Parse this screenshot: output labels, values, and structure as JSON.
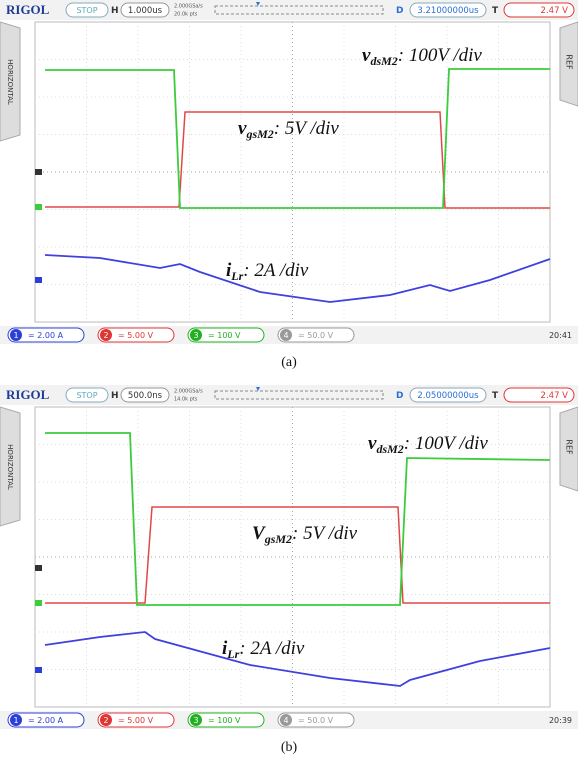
{
  "panels": [
    {
      "brand": "RIGOL",
      "status": "STOP",
      "h_label": "H",
      "timebase": "1.000us",
      "sample_rate": "2.000GSa/s",
      "points": "20.0k pts",
      "d_label": "D",
      "delay": "3.21000000us",
      "t_label": "T",
      "trigger_level": "2.47 V",
      "side_left": "HORIZONTAL",
      "side_right": "REF",
      "labels": [
        {
          "main": "v",
          "sub": "dsM2",
          "rest": ": 100V /div"
        },
        {
          "main": "v",
          "sub": "gsM2",
          "rest": ": 5V /div"
        },
        {
          "main": "i",
          "sub": "Lr",
          "rest": ": 2A /div"
        }
      ],
      "channels": [
        {
          "number": "1",
          "scale": "= 2.00 A"
        },
        {
          "number": "2",
          "scale": "= 5.00 V"
        },
        {
          "number": "3",
          "scale": "= 100 V"
        },
        {
          "number": "4",
          "scale": "= 50.0 V"
        }
      ],
      "clock": "20:41",
      "caption": "(a)"
    },
    {
      "brand": "RIGOL",
      "status": "STOP",
      "h_label": "H",
      "timebase": "500.0ns",
      "sample_rate": "2.000GSa/s",
      "points": "14.0k pts",
      "d_label": "D",
      "delay": "2.05000000us",
      "t_label": "T",
      "trigger_level": "2.47 V",
      "side_left": "HORIZONTAL",
      "side_right": "REF",
      "labels": [
        {
          "main": "v",
          "sub": "dsM2",
          "rest": ": 100V /div"
        },
        {
          "main": "V",
          "sub": "gsM2",
          "rest": ": 5V /div"
        },
        {
          "main": "i",
          "sub": "Lr",
          "rest": ": 2A /div"
        }
      ],
      "channels": [
        {
          "number": "1",
          "scale": "= 2.00 A"
        },
        {
          "number": "2",
          "scale": "= 5.00 V"
        },
        {
          "number": "3",
          "scale": "= 100 V"
        },
        {
          "number": "4",
          "scale": "= 50.0 V"
        }
      ],
      "clock": "20:39",
      "caption": "(b)"
    }
  ]
}
